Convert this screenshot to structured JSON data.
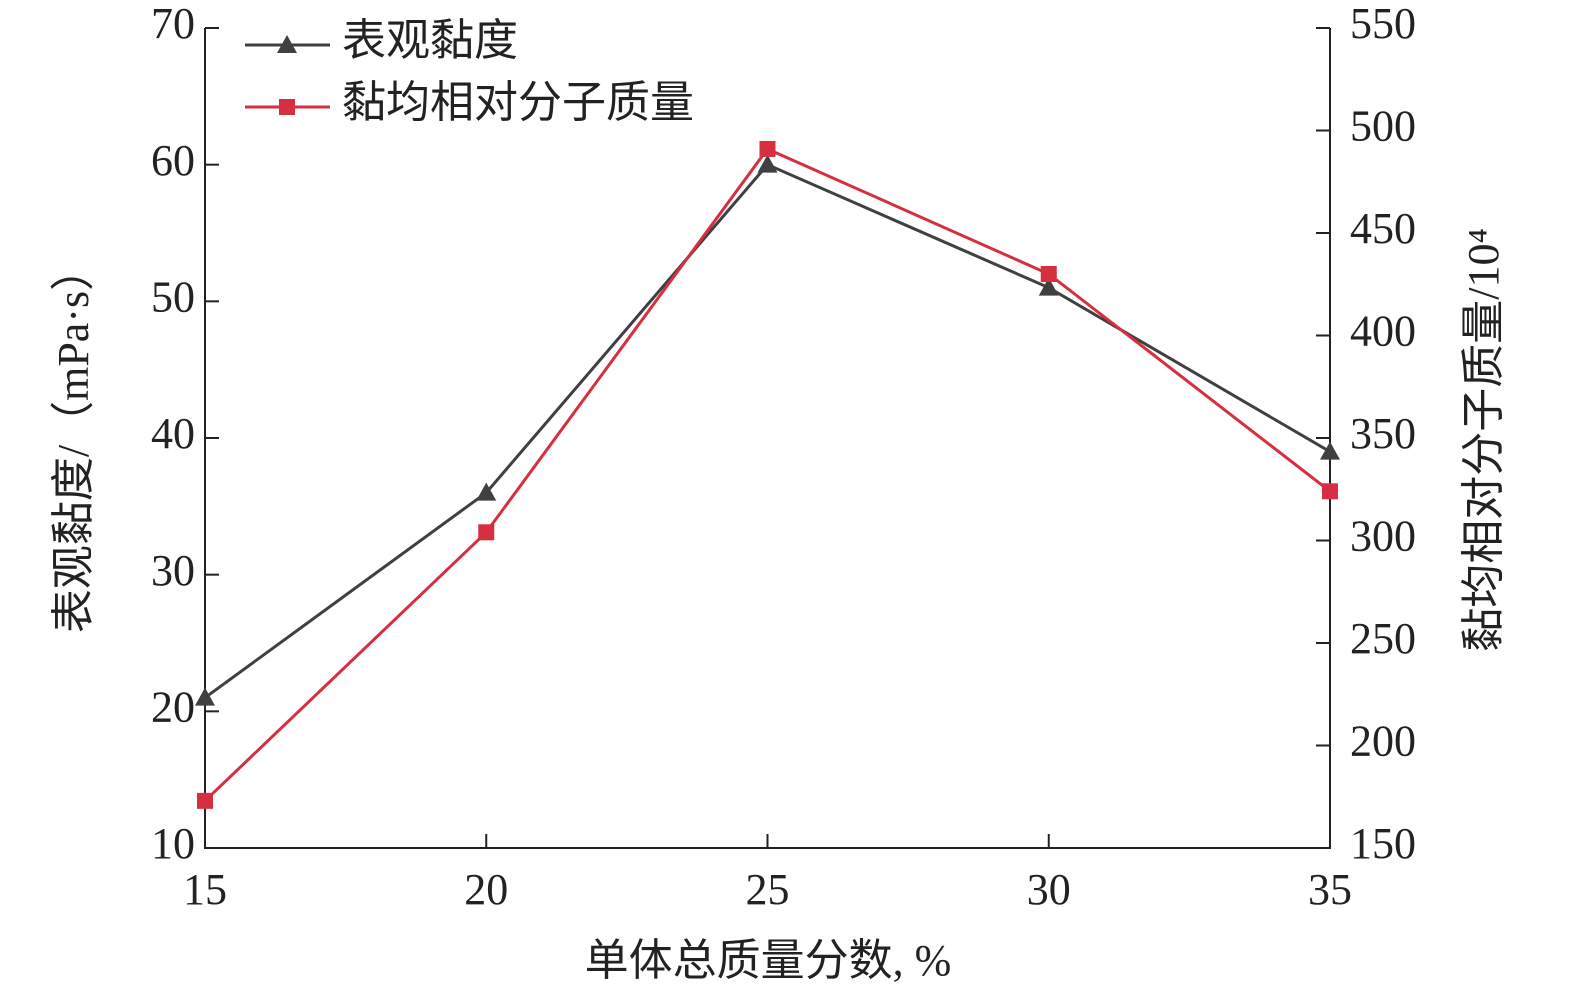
{
  "chart_data": {
    "type": "line",
    "x": [
      15,
      20,
      25,
      30,
      35
    ],
    "xlim": [
      15,
      35
    ],
    "xticks": [
      15,
      20,
      25,
      30,
      35
    ],
    "xlabel": "单体总质量分数, %",
    "ylabel": "表观黏度/（mPa·s）",
    "y2label": "黏均相对分子质量/10⁴",
    "ylim": [
      10,
      70
    ],
    "yticks": [
      10,
      20,
      30,
      40,
      50,
      60,
      70
    ],
    "y2lim": [
      150,
      550
    ],
    "y2ticks": [
      150,
      200,
      250,
      300,
      350,
      400,
      450,
      500,
      550
    ],
    "legend": "upper left",
    "series": [
      {
        "name": "表观黏度",
        "color": "#404040",
        "marker": "triangle",
        "values": [
          21,
          36,
          60,
          51,
          39
        ]
      },
      {
        "name": "黏均相对分子质量",
        "color": "#d62f3f",
        "marker": "square",
        "axis": "y2",
        "values": [
          173,
          304,
          491,
          430,
          324
        ]
      }
    ]
  }
}
